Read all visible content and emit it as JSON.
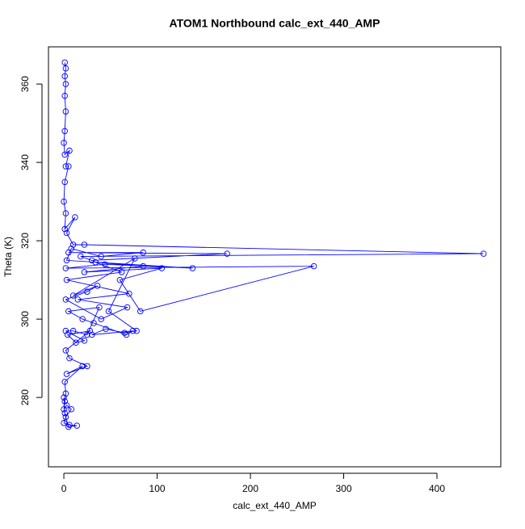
{
  "chart_data": {
    "type": "line",
    "title": "ATOM1 Northbound calc_ext_440_AMP",
    "x_label": "calc_ext_440_AMP",
    "y_label": "Theta (K)",
    "marker": "circle",
    "x": [
      1,
      2,
      1,
      2,
      1,
      2,
      1,
      0,
      1,
      6,
      2,
      5,
      1,
      0,
      2,
      1,
      12,
      3,
      10,
      22,
      450,
      18,
      30,
      175,
      5,
      85,
      40,
      8,
      3,
      138,
      44,
      2,
      268,
      82,
      60,
      105,
      22,
      85,
      34,
      62,
      3,
      70,
      15,
      68,
      40,
      2,
      25,
      36,
      10,
      76,
      48,
      78,
      65,
      45,
      30,
      74,
      67,
      32,
      20,
      5,
      38,
      25,
      10,
      2,
      22,
      13,
      4,
      28,
      2,
      6,
      25,
      3,
      20,
      1,
      2,
      1,
      0,
      3,
      8,
      2,
      0,
      6,
      14,
      5,
      1,
      0
    ],
    "series": [
      {
        "name": "calc_ext_440_AMP",
        "color": "#0000ff",
        "values": [
          365.5,
          364,
          362,
          360,
          357,
          353,
          348,
          345,
          342,
          343,
          339,
          339,
          335,
          330,
          327,
          323,
          326,
          322,
          319,
          319,
          316.7,
          316,
          315,
          316.7,
          317,
          317,
          316,
          318,
          315,
          313,
          314,
          313,
          313.5,
          302,
          310,
          313,
          312,
          313.5,
          314.5,
          312,
          310,
          306.5,
          305,
          303,
          300,
          305,
          307,
          308.5,
          306,
          315.5,
          302,
          297,
          296.5,
          297.5,
          296,
          297,
          296,
          299,
          300,
          302,
          303,
          296,
          297,
          297,
          294.5,
          294,
          296,
          297,
          292,
          290,
          288,
          286,
          288,
          284,
          281,
          279,
          277,
          278,
          277,
          275,
          273.5,
          273,
          272.8,
          272.5,
          276,
          280
        ]
      }
    ],
    "xlim": [
      -16.5,
      468.4
    ],
    "ylim": [
      262.3,
      369.5
    ],
    "xticks": [
      0,
      100,
      200,
      300,
      400
    ],
    "yticks": [
      280,
      300,
      320,
      340,
      360
    ]
  }
}
